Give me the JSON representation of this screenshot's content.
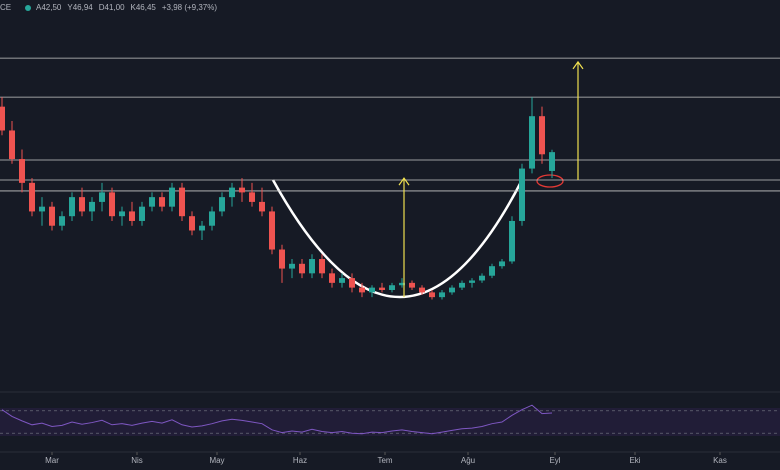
{
  "chart_data": {
    "type": "candlestick",
    "symbol": "CE",
    "header": [
      "A42,50",
      "Y46,94",
      "D41,00",
      "K46,45",
      "+3,98 (+9,37%)"
    ],
    "open": [
      56,
      51,
      45,
      40,
      34,
      35,
      31,
      33,
      37,
      34,
      36,
      38,
      33,
      34,
      32,
      35,
      37,
      35,
      39,
      33,
      30,
      31,
      34,
      37,
      39,
      38,
      36,
      34,
      26,
      22,
      23,
      21,
      24,
      21,
      19,
      20,
      18,
      17,
      18,
      17.5,
      18.5,
      19,
      18,
      17,
      16,
      17,
      18,
      19,
      19.5,
      20.5,
      22.5,
      23.5,
      32,
      43,
      54,
      42.5
    ],
    "high": [
      58,
      53,
      47,
      41,
      37,
      36,
      34,
      38,
      39,
      37,
      40,
      39,
      35,
      36,
      36,
      38,
      38,
      40,
      40,
      34,
      32,
      35,
      38,
      40,
      41,
      40,
      39,
      35,
      27,
      24,
      24,
      25,
      25,
      22,
      21,
      21,
      19,
      18.5,
      19,
      19,
      20,
      19.5,
      18.5,
      17.5,
      17.5,
      18.5,
      19.5,
      20,
      21,
      23,
      24,
      33,
      44,
      58,
      56,
      46.94
    ],
    "low": [
      50,
      44,
      38,
      33,
      31,
      30,
      30,
      32,
      33,
      32,
      34,
      32,
      31,
      31,
      31,
      34,
      34,
      34,
      32,
      29,
      28,
      30,
      33,
      35,
      36,
      35,
      33,
      25,
      19,
      20,
      20,
      20,
      20,
      18,
      18,
      17,
      16,
      16,
      17,
      17,
      18,
      17.5,
      16.5,
      15.5,
      15.5,
      16.5,
      17.5,
      18,
      19,
      20,
      22,
      23,
      31,
      42,
      44,
      41
    ],
    "close": [
      51,
      45,
      40,
      34,
      35,
      31,
      33,
      37,
      34,
      36,
      38,
      33,
      34,
      32,
      35,
      37,
      35,
      39,
      33,
      30,
      31,
      34,
      37,
      39,
      38,
      36,
      34,
      26,
      22,
      23,
      21,
      24,
      21,
      19,
      20,
      18,
      17,
      18,
      17.5,
      18.5,
      19,
      18,
      17,
      16,
      17,
      18,
      19,
      19.5,
      20.5,
      22.5,
      23.5,
      32,
      43,
      54,
      46,
      46.45
    ],
    "up_color": "#26a69a",
    "down_color": "#ef5350",
    "ylim": [
      -3.5,
      78.4
    ],
    "xlim": [
      -0.2,
      77.8
    ],
    "xticks": [
      {
        "value": 5,
        "label": "Mar"
      },
      {
        "value": 13.5,
        "label": "Nis"
      },
      {
        "value": 21.5,
        "label": "May"
      },
      {
        "value": 29.8,
        "label": "Haz"
      },
      {
        "value": 38.3,
        "label": "Tem"
      },
      {
        "value": 46.6,
        "label": "Ağu"
      },
      {
        "value": 55.3,
        "label": "Eyl"
      },
      {
        "value": 63.3,
        "label": "Eki"
      },
      {
        "value": 71.8,
        "label": "Kas"
      }
    ],
    "hlines": [
      66.2,
      58.0,
      44.8,
      40.6,
      38.3
    ],
    "arrows": [
      {
        "x": 40.2,
        "from": 16.0,
        "to": 41.0
      },
      {
        "x": 57.6,
        "from": 40.6,
        "to": 65.4
      }
    ],
    "rsi": {
      "color": "#7e57c2",
      "ylim": [
        0,
        100
      ],
      "levels": [
        70,
        30
      ],
      "values": [
        72,
        60,
        52,
        45,
        48,
        42,
        44,
        50,
        46,
        49,
        53,
        45,
        47,
        44,
        48,
        51,
        48,
        54,
        45,
        41,
        43,
        47,
        52,
        55,
        53,
        50,
        47,
        36,
        31,
        34,
        32,
        37,
        33,
        31,
        33,
        30,
        29,
        32,
        31,
        34,
        36,
        33,
        31,
        29,
        32,
        35,
        38,
        39,
        42,
        47,
        50,
        62,
        72,
        80,
        65,
        66
      ]
    }
  }
}
